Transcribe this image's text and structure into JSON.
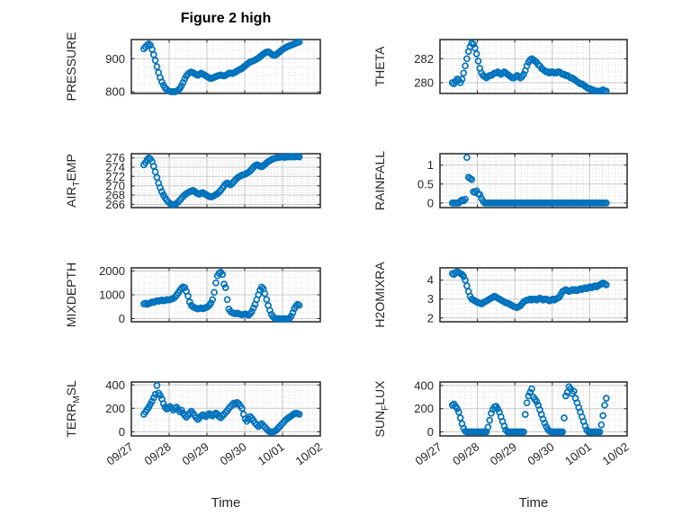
{
  "title": "Figure 2 high",
  "x_axis_label": "Time",
  "colors": {
    "marker": "#0072BD",
    "axis": "#262626",
    "grid": "#c8c8c8",
    "minor_grid": "#d8d8d8",
    "background": "#ffffff",
    "title_color": "#000000"
  },
  "chart_data": {
    "type": "scatter",
    "title": "Figure 2 high",
    "xlabel": "Time",
    "legend": "none",
    "grid": "major+minor-dotted",
    "x": {
      "start": 0.33,
      "step": 0.0433,
      "n": 96,
      "unit": "days since 09/27 00:00",
      "lim": [
        0,
        5
      ],
      "tick_labels": [
        "09/27",
        "09/28",
        "09/29",
        "09/30",
        "10/01",
        "10/02"
      ],
      "minor_divisions_per_day": 6
    },
    "series": [
      {
        "key": "pressure",
        "ylabel": "PRESSURE",
        "ylabel_segments": [
          [
            "PRESSURE",
            false
          ]
        ],
        "yticks": [
          800,
          900
        ],
        "ylim": [
          795,
          958
        ],
        "yminor": 25,
        "values": [
          930,
          936,
          941,
          945,
          941,
          928,
          912,
          895,
          876,
          858,
          843,
          830,
          820,
          812,
          807,
          803,
          801,
          800,
          801,
          800,
          802,
          805,
          810,
          818,
          828,
          839,
          848,
          854,
          858,
          860,
          858,
          855,
          852,
          850,
          853,
          856,
          854,
          851,
          848,
          845,
          842,
          840,
          842,
          844,
          846,
          848,
          850,
          851,
          849,
          848,
          850,
          853,
          856,
          857,
          855,
          857,
          860,
          863,
          866,
          868,
          871,
          875,
          879,
          883,
          887,
          890,
          892,
          894,
          896,
          899,
          902,
          906,
          910,
          914,
          917,
          920,
          921,
          918,
          914,
          911,
          910,
          913,
          917,
          921,
          925,
          929,
          932,
          935,
          937,
          939,
          941,
          943,
          945,
          947,
          949,
          951
        ]
      },
      {
        "key": "theta",
        "ylabel": "THETA",
        "ylabel_segments": [
          [
            "THETA",
            false
          ]
        ],
        "yticks": [
          280,
          282
        ],
        "ylim": [
          279.1,
          283.6
        ],
        "yminor": 0.5,
        "values": [
          280,
          279.9,
          280.1,
          280.3,
          280.2,
          280,
          280.3,
          280.8,
          281.4,
          282,
          282.6,
          283,
          283.3,
          283.2,
          282.9,
          282.4,
          281.8,
          281.2,
          280.8,
          280.6,
          280.5,
          280.4,
          280.5,
          280.6,
          280.6,
          280.7,
          280.8,
          280.8,
          280.9,
          280.8,
          280.7,
          280.8,
          280.9,
          280.8,
          280.7,
          280.6,
          280.5,
          280.4,
          280.4,
          280.5,
          280.6,
          280.5,
          280.4,
          280.5,
          280.7,
          281,
          281.4,
          281.7,
          281.9,
          282,
          281.9,
          281.8,
          281.7,
          281.5,
          281.4,
          281.2,
          281.1,
          281,
          280.9,
          280.9,
          280.8,
          280.9,
          280.9,
          280.8,
          280.8,
          280.9,
          280.9,
          280.8,
          280.7,
          280.7,
          280.6,
          280.6,
          280.5,
          280.4,
          280.4,
          280.3,
          280.2,
          280.1,
          280,
          279.9,
          279.9,
          279.8,
          279.7,
          279.6,
          279.5,
          279.5,
          279.4,
          279.4,
          279.3,
          279.3,
          279.3,
          279.3,
          279.3,
          279.4,
          279.3,
          279.3
        ]
      },
      {
        "key": "airtemp",
        "ylabel": "AIR_TEMP",
        "ylabel_segments": [
          [
            "AIR",
            false
          ],
          [
            "T",
            true
          ],
          [
            "EMP",
            false
          ]
        ],
        "yticks": [
          266,
          268,
          270,
          272,
          274,
          276
        ],
        "ylim": [
          265.3,
          276.9
        ],
        "yminor": 0.5,
        "values": [
          274.5,
          275,
          275.6,
          276,
          275.8,
          275.2,
          274.2,
          273,
          271.8,
          270.6,
          269.6,
          268.7,
          268,
          267.4,
          266.9,
          266.5,
          266.2,
          266,
          265.9,
          266,
          266.2,
          266.5,
          266.9,
          267.3,
          267.7,
          268,
          268.3,
          268.5,
          268.7,
          268.9,
          269,
          268.8,
          268.5,
          268.3,
          268.2,
          268.4,
          268.5,
          268.3,
          268.1,
          267.9,
          267.7,
          267.6,
          267.7,
          267.9,
          268.1,
          268.3,
          268.6,
          269,
          269.5,
          270,
          270.4,
          270.6,
          270.4,
          270.2,
          270.5,
          270.9,
          271.3,
          271.6,
          271.9,
          272.1,
          272.3,
          272.4,
          272.5,
          272.7,
          272.9,
          273.2,
          273.6,
          274,
          274.3,
          274.5,
          274.4,
          274.2,
          274.1,
          274.3,
          274.6,
          274.9,
          275.2,
          275.4,
          275.6,
          275.8,
          275.9,
          276,
          276.1,
          276.1,
          276.2,
          276.2,
          276.1,
          276.2,
          276.2,
          276.3,
          276.2,
          276.3,
          276.2,
          276.3,
          276.3,
          276.2
        ]
      },
      {
        "key": "rainfall",
        "ylabel": "RAINFALL",
        "ylabel_segments": [
          [
            "RAINFALL",
            false
          ]
        ],
        "yticks": [
          0,
          0.5,
          1
        ],
        "ylim": [
          -0.12,
          1.3
        ],
        "yminor": 0.1,
        "values": [
          0,
          0,
          0,
          0,
          0,
          0.05,
          0.08,
          0.06,
          0.1,
          1.2,
          0.68,
          0.65,
          0.62,
          0.3,
          0.28,
          0.32,
          0.25,
          0.22,
          0.12,
          0.05,
          0,
          0,
          0,
          0,
          0,
          0,
          0,
          0,
          0,
          0,
          0,
          0,
          0,
          0,
          0,
          0,
          0,
          0,
          0,
          0,
          0,
          0,
          0,
          0,
          0,
          0,
          0,
          0,
          0,
          0,
          0,
          0,
          0,
          0,
          0,
          0,
          0,
          0,
          0,
          0,
          0,
          0,
          0,
          0,
          0,
          0,
          0,
          0,
          0,
          0,
          0,
          0,
          0,
          0,
          0,
          0,
          0,
          0,
          0,
          0,
          0,
          0,
          0,
          0,
          0,
          0,
          0,
          0,
          0,
          0,
          0,
          0,
          0,
          0,
          0,
          0
        ]
      },
      {
        "key": "mixdepth",
        "ylabel": "MIXDEPTH",
        "ylabel_segments": [
          [
            "MIXDEPTH",
            false
          ]
        ],
        "yticks": [
          0,
          1000,
          2000
        ],
        "ylim": [
          -130,
          2130
        ],
        "yminor": 250,
        "values": [
          620,
          650,
          600,
          630,
          660,
          700,
          680,
          720,
          750,
          730,
          760,
          780,
          750,
          770,
          800,
          780,
          800,
          820,
          850,
          900,
          980,
          1080,
          1180,
          1280,
          1330,
          1300,
          1150,
          950,
          700,
          560,
          500,
          460,
          430,
          410,
          430,
          450,
          420,
          440,
          470,
          500,
          560,
          650,
          800,
          1100,
          1500,
          1800,
          1900,
          1950,
          1850,
          1450,
          1300,
          800,
          400,
          300,
          250,
          220,
          200,
          230,
          210,
          180,
          160,
          180,
          200,
          170,
          150,
          200,
          300,
          450,
          600,
          800,
          1000,
          1200,
          1320,
          1250,
          1050,
          800,
          550,
          350,
          180,
          80,
          20,
          0,
          -20,
          0,
          -10,
          0,
          -20,
          0,
          -10,
          0,
          100,
          250,
          420,
          530,
          600,
          560
        ]
      },
      {
        "key": "h2omixra",
        "ylabel": "H2OMIXRA",
        "ylabel_segments": [
          [
            "H2OMIXRA",
            false
          ]
        ],
        "yticks": [
          2,
          3,
          4
        ],
        "ylim": [
          1.8,
          4.65
        ],
        "yminor": 0.25,
        "values": [
          4.35,
          4.3,
          4.4,
          4.45,
          4.4,
          4.35,
          4.3,
          4.2,
          4,
          3.7,
          3.4,
          3.15,
          3,
          2.95,
          2.9,
          2.85,
          2.8,
          2.78,
          2.75,
          2.8,
          2.85,
          2.9,
          2.95,
          3,
          3.05,
          3.1,
          3.15,
          3.1,
          3.05,
          3,
          2.95,
          2.9,
          2.85,
          2.8,
          2.78,
          2.75,
          2.7,
          2.65,
          2.6,
          2.58,
          2.55,
          2.6,
          2.65,
          2.75,
          2.85,
          2.9,
          2.95,
          2.95,
          3,
          2.95,
          3,
          3,
          2.95,
          3,
          3.05,
          3,
          2.95,
          3,
          3,
          2.95,
          2.9,
          2.95,
          3,
          2.95,
          3,
          3.05,
          3.1,
          3.25,
          3.4,
          3.45,
          3.5,
          3.45,
          3.4,
          3.45,
          3.5,
          3.45,
          3.5,
          3.45,
          3.5,
          3.55,
          3.5,
          3.55,
          3.6,
          3.55,
          3.6,
          3.65,
          3.6,
          3.65,
          3.7,
          3.65,
          3.7,
          3.75,
          3.8,
          3.85,
          3.8,
          3.75
        ]
      },
      {
        "key": "terr_msl",
        "ylabel": "TERR_MSL",
        "ylabel_segments": [
          [
            "TERR",
            false
          ],
          [
            "M",
            true
          ],
          [
            "SL",
            false
          ]
        ],
        "yticks": [
          0,
          200,
          400
        ],
        "ylim": [
          -35,
          425
        ],
        "yminor": 50,
        "values": [
          150,
          170,
          190,
          210,
          235,
          260,
          290,
          320,
          395,
          330,
          310,
          280,
          240,
          210,
          195,
          205,
          215,
          200,
          185,
          200,
          210,
          190,
          170,
          185,
          160,
          140,
          125,
          140,
          160,
          175,
          160,
          140,
          120,
          105,
          120,
          135,
          145,
          140,
          130,
          145,
          155,
          145,
          135,
          150,
          160,
          150,
          130,
          120,
          135,
          150,
          165,
          180,
          200,
          215,
          230,
          245,
          235,
          250,
          240,
          220,
          200,
          150,
          110,
          90,
          110,
          130,
          115,
          95,
          75,
          60,
          45,
          60,
          70,
          55,
          40,
          25,
          10,
          0,
          -5,
          0,
          5,
          15,
          30,
          45,
          60,
          75,
          90,
          105,
          115,
          125,
          135,
          145,
          155,
          160,
          155,
          150
        ]
      },
      {
        "key": "sun_flux",
        "ylabel": "SUN_FLUX",
        "ylabel_segments": [
          [
            "SUN",
            false
          ],
          [
            "F",
            true
          ],
          [
            "LUX",
            false
          ]
        ],
        "yticks": [
          0,
          200,
          400
        ],
        "ylim": [
          -35,
          430
        ],
        "yminor": 50,
        "values": [
          230,
          240,
          220,
          200,
          170,
          120,
          70,
          30,
          5,
          0,
          0,
          0,
          0,
          0,
          0,
          0,
          0,
          0,
          0,
          0,
          0,
          0,
          40,
          100,
          160,
          195,
          215,
          220,
          200,
          170,
          130,
          90,
          50,
          15,
          0,
          0,
          0,
          0,
          0,
          0,
          0,
          0,
          0,
          0,
          0,
          150,
          250,
          310,
          340,
          370,
          300,
          280,
          260,
          230,
          190,
          150,
          110,
          75,
          45,
          20,
          5,
          0,
          0,
          0,
          0,
          0,
          0,
          0,
          0,
          120,
          310,
          340,
          390,
          370,
          330,
          350,
          290,
          250,
          210,
          170,
          130,
          90,
          50,
          15,
          0,
          0,
          0,
          0,
          0,
          0,
          0,
          0,
          60,
          140,
          230,
          290
        ]
      }
    ]
  }
}
